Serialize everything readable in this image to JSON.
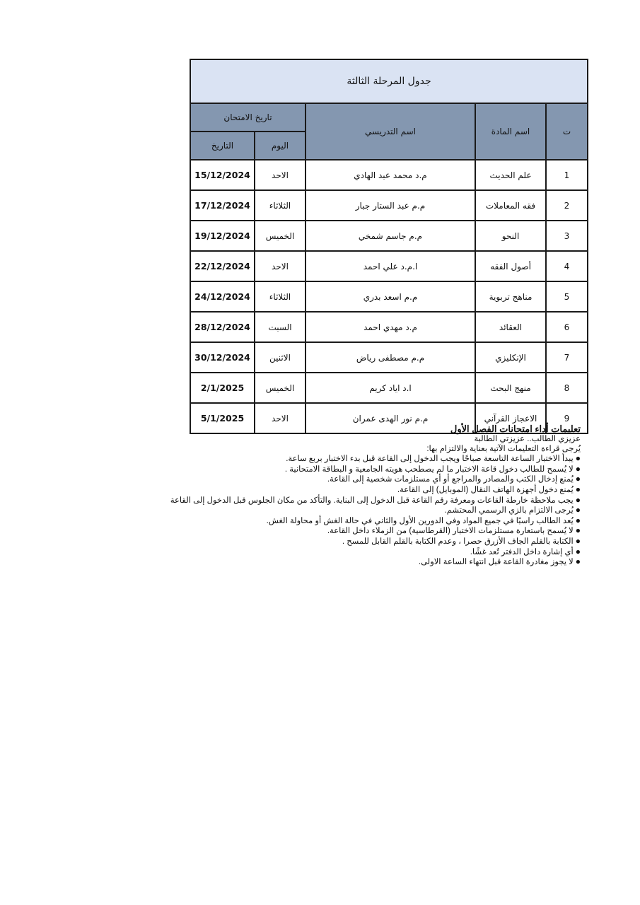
{
  "table": {
    "title": "جدول المرحلة الثالثة",
    "headers": {
      "num": "ت",
      "subject": "اسم المادة",
      "teacher": "اسم التدريسي",
      "exam_date": "تاريخ الامتحان",
      "day": "اليوم",
      "date": "التاريخ"
    },
    "rows": [
      {
        "num": "1",
        "subject": "علم الحديث",
        "teacher": "م.د محمد عبد الهادي",
        "day": "الاحد",
        "date": "15/12/2024"
      },
      {
        "num": "2",
        "subject": "فقه المعاملات",
        "teacher": "م.م عبد الستار جبار",
        "day": "الثلاثاء",
        "date": "17/12/2024"
      },
      {
        "num": "3",
        "subject": "النحو",
        "teacher": "م.م جاسم شمخي",
        "day": "الخميس",
        "date": "19/12/2024"
      },
      {
        "num": "4",
        "subject": "أصول الفقه",
        "teacher": "ا.م.د علي احمد",
        "day": "الاحد",
        "date": "22/12/2024"
      },
      {
        "num": "5",
        "subject": "مناهج تربوية",
        "teacher": "م.م اسعد بدري",
        "day": "الثلاثاء",
        "date": "24/12/2024"
      },
      {
        "num": "6",
        "subject": "العقائد",
        "teacher": "م.د مهدي احمد",
        "day": "السبت",
        "date": "28/12/2024"
      },
      {
        "num": "7",
        "subject": "الإنكليزي",
        "teacher": "م.م مصطفى رياض",
        "day": "الاثنين",
        "date": "30/12/2024"
      },
      {
        "num": "8",
        "subject": "منهج البحث",
        "teacher": "ا.د اياد كريم",
        "day": "الخميس",
        "date": "2/1/2025"
      },
      {
        "num": "9",
        "subject": "الاعجاز القرآني",
        "teacher": "م.م نور الهدى عمران",
        "day": "الاحد",
        "date": "5/1/2025"
      }
    ]
  },
  "instructions": {
    "heading": "تعليمات أداء امتحانات الفصل الأول",
    "greeting": "عزيزي الطالب.. عزيزتي الطالبة",
    "intro": "يُرجى قراءة التعليمات الآتية بعناية والالتزام بها:",
    "bullet_icon": "●",
    "items": [
      "يبدأ الاختبار الساعة التاسعة صباحًا ويجب الدخول إلى القاعة قبل بدء الاختبار بربع ساعة.",
      "لا يُسمح للطالب دخول قاعة الاختبار ما لم يصطحب هويته الجامعية و البطاقة الامتحانية .",
      "يُمنع إدخال الكتب والمصادر والمراجع أو أي مستلزمات شخصية إلى القاعة.",
      "يُمنع دخول أجهزة الهاتف النقال (الموبايل) إلى القاعة.",
      "يجب ملاحظة خارطة القاعات ومعرفة رقم القاعة قبل الدخول إلى البناية. والتأكد من مكان الجلوس قبل الدخول إلى القاعة",
      "يُرجى الالتزام بالزي الرسمي المحتشم.",
      "يُعد الطالب راسبًا في جميع المواد وفي الدورين الأول والثاني في حالة الغش أو محاولة الغش.",
      "لا يُسمح باستعارة مستلزمات الاختبار (القرطاسية) من الزملاء داخل القاعة.",
      "الكتابة بالقلم الجاف الأزرق حصرا ، وعدم الكتابة بالقلم القابل للمسح .",
      "أي إشارة داخل الدفتر تُعد غشًا.",
      "لا يجوز مغادرة القاعة قبل انتهاء الساعة الاولى."
    ]
  }
}
